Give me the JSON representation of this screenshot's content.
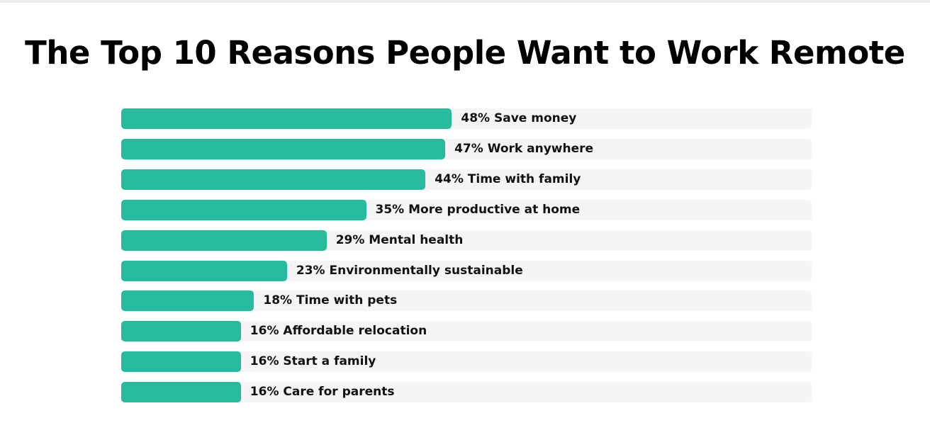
{
  "chart_data": {
    "type": "bar",
    "orientation": "horizontal",
    "title": "The Top 10 Reasons People Want to Work Remote",
    "xlabel": "",
    "ylabel": "",
    "unit": "%",
    "xlim": [
      0,
      100
    ],
    "grid": false,
    "legend": "none",
    "categories": [
      "Save money",
      "Work anywhere",
      "Time with family",
      "More productive at home",
      "Mental health",
      "Environmentally sustainable",
      "Time with pets",
      "Affordable relocation",
      "Start a family",
      "Care for parents"
    ],
    "values": [
      48,
      47,
      44,
      35,
      29,
      23,
      18,
      16,
      16,
      16
    ],
    "colors": {
      "bar": "#25bb9c",
      "track": "#f5f5f5",
      "text": "#111111"
    }
  }
}
